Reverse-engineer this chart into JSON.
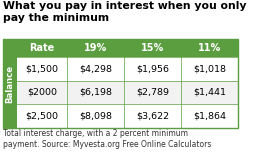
{
  "title_line1": "What you pay in interest when you only",
  "title_line2": "pay the minimum",
  "header_bg": "#5a9e3f",
  "header_text_color": "#ffffff",
  "row_bg_white": "#ffffff",
  "row_bg_light": "#ffffff",
  "side_col_bg": "#5a9e3f",
  "side_col_text": "#ffffff",
  "side_col_label": "Balance",
  "col_headers": [
    "Rate",
    "19%",
    "15%",
    "11%"
  ],
  "rows": [
    [
      "$1,500",
      "$4,298",
      "$1,956",
      "$1,018"
    ],
    [
      "$2000",
      "$6,198",
      "$2,789",
      "$1,441"
    ],
    [
      "$2,500",
      "$8,098",
      "$3,622",
      "$1,864"
    ]
  ],
  "footer_line1": "Total interest charge, with a 2 percent minimum",
  "footer_line2": "payment. Source: Myvesta.org Free Online Calculators",
  "table_border_color": "#5a9e3f",
  "divider_color": "#5a9e3f",
  "title_fontsize": 7.8,
  "header_fontsize": 7.0,
  "cell_fontsize": 6.8,
  "side_fontsize": 6.2,
  "footer_fontsize": 5.5
}
